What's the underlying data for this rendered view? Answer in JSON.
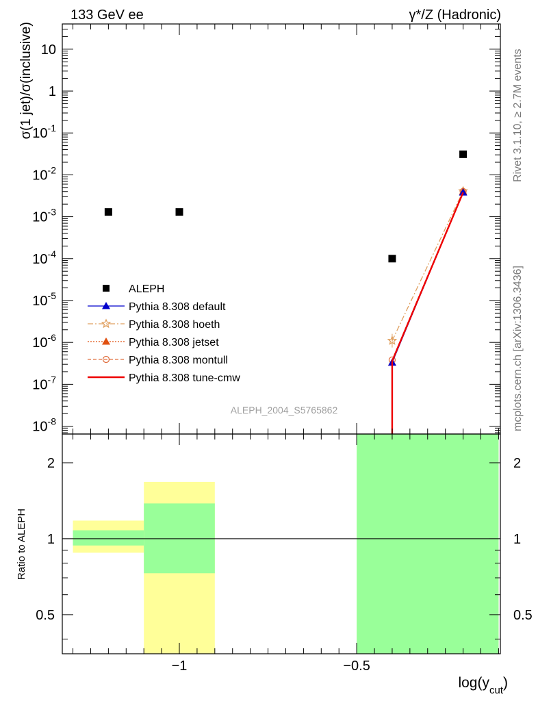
{
  "header": {
    "left": "133 GeV ee",
    "right": "γ*/Z (Hadronic)"
  },
  "side_labels": {
    "rivet": "Rivet 3.1.10, ≥ 2.7M events",
    "mcplots": "mcplots.cern.ch [arXiv:1306.3436]"
  },
  "watermark": "ALEPH_2004_S5765862",
  "colors": {
    "data": "#000000",
    "default": "#0000cc",
    "hoeth": "#e0a060",
    "jetset": "#e05010",
    "montull": "#e07040",
    "tunecmw": "#ee0000",
    "band_outer": "#ffff99",
    "band_inner": "#99ff99"
  },
  "chart_data": [
    {
      "type": "scatter",
      "panel": "main",
      "ylabel": "σ(1 jet)/σ(inclusive)",
      "xlabel": "log(y_cut)",
      "y_scale": "log",
      "xlim": [
        -1.33,
        -0.095
      ],
      "ylim": [
        6.5e-09,
        40
      ],
      "y_ticks": [
        {
          "v": 1e-08,
          "label": "10",
          "exp": "-8"
        },
        {
          "v": 1e-07,
          "label": "10",
          "exp": "-7"
        },
        {
          "v": 1e-06,
          "label": "10",
          "exp": "-6"
        },
        {
          "v": 1e-05,
          "label": "10",
          "exp": "-5"
        },
        {
          "v": 0.0001,
          "label": "10",
          "exp": "-4"
        },
        {
          "v": 0.001,
          "label": "10",
          "exp": "-3"
        },
        {
          "v": 0.01,
          "label": "10",
          "exp": "-2"
        },
        {
          "v": 0.1,
          "label": "10",
          "exp": "-1"
        },
        {
          "v": 1,
          "label": "1",
          "exp": ""
        },
        {
          "v": 10,
          "label": "10",
          "exp": ""
        }
      ],
      "legend_position": "middle-left",
      "series": [
        {
          "name": "ALEPH",
          "key": "data",
          "marker": "square",
          "x": [
            -1.2,
            -1.0,
            -0.4,
            -0.2
          ],
          "y": [
            0.0013,
            0.0013,
            0.0001,
            0.031
          ]
        },
        {
          "name": "Pythia 8.308 default",
          "key": "default",
          "marker": "triangle",
          "line": "solid",
          "x": [
            -0.4,
            -0.2
          ],
          "y": [
            3.3e-07,
            0.0038
          ]
        },
        {
          "name": "Pythia 8.308 hoeth",
          "key": "hoeth",
          "marker": "star",
          "line": "dashdot",
          "x": [
            -0.4,
            -0.2
          ],
          "y": [
            1.1e-06,
            0.0041
          ]
        },
        {
          "name": "Pythia 8.308 jetset",
          "key": "jetset",
          "marker": "triangle",
          "line": "dotted",
          "x": [
            -0.4,
            -0.2
          ],
          "y": [
            3.3e-07,
            0.004
          ]
        },
        {
          "name": "Pythia 8.308 montull",
          "key": "montull",
          "marker": "circle-open",
          "line": "dashed",
          "x": [
            -0.4,
            -0.2
          ],
          "y": [
            3.8e-07,
            0.004
          ]
        },
        {
          "name": "Pythia 8.308 tune-cmw",
          "key": "tunecmw",
          "marker": "none",
          "line": "solid-thick",
          "x": [
            -0.4,
            -0.2
          ],
          "y": [
            3.6e-07,
            0.0038
          ]
        }
      ]
    },
    {
      "type": "area",
      "panel": "ratio",
      "ylabel": "Ratio to ALEPH",
      "xlabel": "log(y_cut)",
      "y_scale": "log",
      "xlim": [
        -1.33,
        -0.095
      ],
      "ylim": [
        0.35,
        2.6
      ],
      "x_ticks": [
        {
          "v": -1,
          "label": "−1"
        },
        {
          "v": -0.5,
          "label": "−0.5"
        }
      ],
      "y_ticks": [
        {
          "v": 0.5,
          "label": "0.5"
        },
        {
          "v": 1,
          "label": "1"
        },
        {
          "v": 2,
          "label": "2"
        }
      ],
      "bands": [
        {
          "x0": -1.3,
          "x1": -1.1,
          "outer": [
            0.88,
            1.18
          ],
          "inner": [
            0.94,
            1.08
          ]
        },
        {
          "x0": -1.1,
          "x1": -0.9,
          "outer": [
            0.35,
            1.68
          ],
          "inner": [
            0.73,
            1.38
          ]
        },
        {
          "x0": -0.5,
          "x1": -0.1,
          "outer": [
            0.35,
            2.6
          ],
          "inner": [
            0.35,
            2.6
          ]
        }
      ]
    }
  ]
}
